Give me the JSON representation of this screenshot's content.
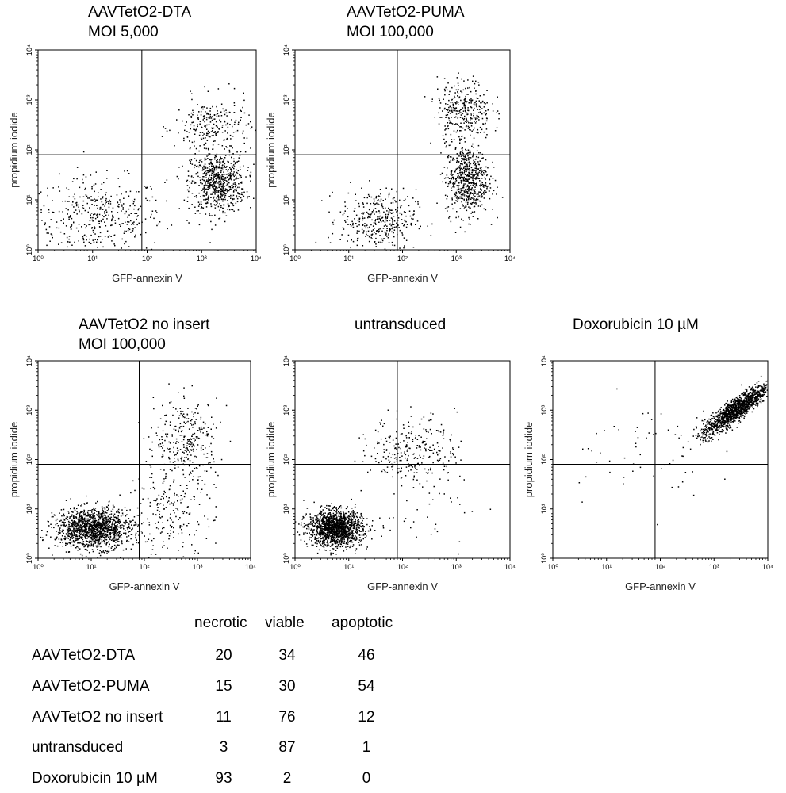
{
  "chart_data": [
    {
      "type": "scatter",
      "title": [
        "AAVTetO2-DTA",
        "MOI 5,000"
      ],
      "xlabel": "GFP-annexin V",
      "ylabel": "propidium iodide",
      "xscale": "log",
      "yscale": "log",
      "xlim": [
        1,
        10000
      ],
      "ylim": [
        1,
        10000
      ],
      "gate": {
        "x": 80,
        "y": 80
      },
      "x_ticks": [
        "10⁰",
        "10¹",
        "10²",
        "10³",
        "10⁴"
      ],
      "y_ticks": [
        "10⁰",
        "10¹",
        "10²",
        "10³",
        "10⁴"
      ],
      "clusters": [
        {
          "name": "viable",
          "count": 420,
          "cx": 1.1,
          "cy": 0.65,
          "sx": 0.6,
          "sy": 0.4
        },
        {
          "name": "apoptotic",
          "count": 700,
          "cx": 3.3,
          "cy": 1.35,
          "sx": 0.25,
          "sy": 0.3
        },
        {
          "name": "necrotic",
          "count": 250,
          "cx": 3.2,
          "cy": 2.45,
          "sx": 0.35,
          "sy": 0.3
        }
      ]
    },
    {
      "type": "scatter",
      "title": [
        "AAVTetO2-PUMA",
        "MOI 100,000"
      ],
      "xlabel": "GFP-annexin V",
      "ylabel": "propidium iodide",
      "xscale": "log",
      "yscale": "log",
      "xlim": [
        1,
        10000
      ],
      "ylim": [
        1,
        10000
      ],
      "gate": {
        "x": 80,
        "y": 80
      },
      "x_ticks": [
        "10⁰",
        "10¹",
        "10²",
        "10³",
        "10⁴"
      ],
      "y_ticks": [
        "10⁰",
        "10¹",
        "10²",
        "10³",
        "10⁴"
      ],
      "clusters": [
        {
          "name": "viable",
          "count": 380,
          "cx": 1.55,
          "cy": 0.6,
          "sx": 0.35,
          "sy": 0.3
        },
        {
          "name": "apoptotic",
          "count": 650,
          "cx": 3.2,
          "cy": 1.4,
          "sx": 0.2,
          "sy": 0.35
        },
        {
          "name": "necrotic",
          "count": 330,
          "cx": 3.15,
          "cy": 2.8,
          "sx": 0.25,
          "sy": 0.3
        }
      ]
    },
    {
      "type": "scatter",
      "title": [
        "AAVTetO2 no insert",
        "MOI 100,000"
      ],
      "xlabel": "GFP-annexin V",
      "ylabel": "propidium iodide",
      "xscale": "log",
      "yscale": "log",
      "xlim": [
        1,
        10000
      ],
      "ylim": [
        1,
        10000
      ],
      "gate": {
        "x": 80,
        "y": 80
      },
      "x_ticks": [
        "10⁰",
        "10¹",
        "10²",
        "10³",
        "10⁴"
      ],
      "y_ticks": [
        "10⁰",
        "10¹",
        "10²",
        "10³",
        "10⁴"
      ],
      "clusters": [
        {
          "name": "viable",
          "count": 1400,
          "cx": 1.05,
          "cy": 0.6,
          "sx": 0.35,
          "sy": 0.2
        },
        {
          "name": "apoptotic",
          "count": 220,
          "cx": 2.5,
          "cy": 0.9,
          "sx": 0.4,
          "sy": 0.5
        },
        {
          "name": "necrotic",
          "count": 300,
          "cx": 2.8,
          "cy": 2.4,
          "sx": 0.3,
          "sy": 0.4
        }
      ]
    },
    {
      "type": "scatter",
      "title": [
        "untransduced"
      ],
      "xlabel": "GFP-annexin V",
      "ylabel": "propidium iodide",
      "xscale": "log",
      "yscale": "log",
      "xlim": [
        1,
        10000
      ],
      "ylim": [
        1,
        10000
      ],
      "gate": {
        "x": 80,
        "y": 80
      },
      "x_ticks": [
        "10⁰",
        "10¹",
        "10²",
        "10³",
        "10⁴"
      ],
      "y_ticks": [
        "10⁰",
        "10¹",
        "10²",
        "10³",
        "10⁴"
      ],
      "clusters": [
        {
          "name": "viable",
          "count": 1500,
          "cx": 0.75,
          "cy": 0.6,
          "sx": 0.25,
          "sy": 0.18
        },
        {
          "name": "apoptotic",
          "count": 40,
          "cx": 2.4,
          "cy": 1.0,
          "sx": 0.5,
          "sy": 0.5
        },
        {
          "name": "necrotic",
          "count": 280,
          "cx": 2.2,
          "cy": 2.2,
          "sx": 0.4,
          "sy": 0.35
        }
      ]
    },
    {
      "type": "scatter",
      "title": [
        "Doxorubicin 10 µM"
      ],
      "xlabel": "GFP-annexin V",
      "ylabel": "propidium iodide",
      "xscale": "log",
      "yscale": "log",
      "xlim": [
        1,
        10000
      ],
      "ylim": [
        1,
        10000
      ],
      "gate": {
        "x": 80,
        "y": 80
      },
      "x_ticks": [
        "10⁰",
        "10¹",
        "10²",
        "10³",
        "10⁴"
      ],
      "y_ticks": [
        "10⁰",
        "10¹",
        "10²",
        "10³",
        "10⁴"
      ],
      "clusters": [
        {
          "name": "necrotic-diagonal",
          "count": 1300,
          "cx": 3.4,
          "cy": 3.0,
          "sx": 0.3,
          "sy": 0.12,
          "slope": 0.75
        },
        {
          "name": "scattered",
          "count": 60,
          "cx": 1.5,
          "cy": 2.2,
          "sx": 0.7,
          "sy": 0.5
        }
      ]
    },
    {
      "type": "table",
      "columns": [
        "necrotic",
        "viable",
        "apoptotic"
      ],
      "rows": [
        {
          "label": "AAVTetO2-DTA",
          "values": [
            "20",
            "34",
            "46"
          ]
        },
        {
          "label": "AAVTetO2-PUMA",
          "values": [
            "15",
            "30",
            "54"
          ]
        },
        {
          "label": "AAVTetO2 no insert",
          "values": [
            "11",
            "76",
            "12"
          ]
        },
        {
          "label": "untransduced",
          "values": [
            "3",
            "87",
            "1"
          ]
        },
        {
          "label": "Doxorubicin 10 µM",
          "values": [
            "93",
            "2",
            "0"
          ]
        }
      ]
    }
  ]
}
